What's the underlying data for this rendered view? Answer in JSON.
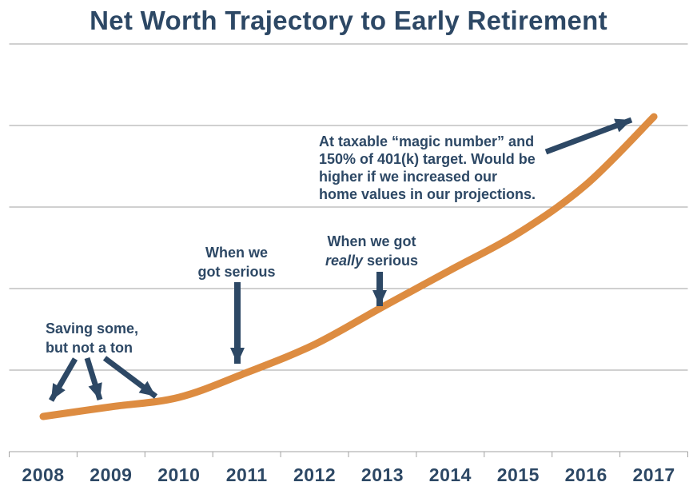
{
  "title": "Net Worth Trajectory to Early Retirement",
  "colors": {
    "navy_text": "#2d4865",
    "curve_orange": "#dd8c41",
    "gridline_gray": "#a2a2a2"
  },
  "annotations": {
    "saving": {
      "line1": "Saving some,",
      "line2": "but not a ton"
    },
    "serious": {
      "line1": "When we",
      "line2": "got serious"
    },
    "really_serious": {
      "line1": "When we got",
      "line2_italic": "really",
      "line2_rest": " serious"
    },
    "magic_number": {
      "lines": [
        "At taxable “magic number” and",
        "150% of 401(k) target. Would be",
        "higher if we increased our",
        "home values in our projections."
      ]
    }
  },
  "chart_data": {
    "type": "line",
    "title": "Net Worth Trajectory to Early Retirement",
    "x": [
      "2008",
      "2009",
      "2010",
      "2011",
      "2012",
      "2013",
      "2014",
      "2015",
      "2016",
      "2017"
    ],
    "series": [
      {
        "name": "Net worth (relative scale, 2017 = 100; no y-axis values shown in chart)",
        "values": [
          10.5,
          13.4,
          16.2,
          23.6,
          32.0,
          43.2,
          54.2,
          65.2,
          79.7,
          100.0
        ]
      }
    ],
    "xlabel": "",
    "ylabel": "",
    "y_axis_labels_shown": false,
    "grid": "horizontal gridlines only",
    "legend": "none",
    "line_color": "#dd8c41",
    "annotations": [
      {
        "text": "Saving some, but not a ton",
        "points_to_years": [
          "2008",
          "2009",
          "2010"
        ]
      },
      {
        "text": "When we got serious",
        "points_to_years": [
          "2011"
        ]
      },
      {
        "text": "When we got really serious",
        "points_to_years": [
          "2013"
        ]
      },
      {
        "text": "At taxable “magic number” and 150% of 401(k) target. Would be higher if we increased our home values in our projections.",
        "points_to_years": [
          "2017"
        ]
      }
    ]
  }
}
